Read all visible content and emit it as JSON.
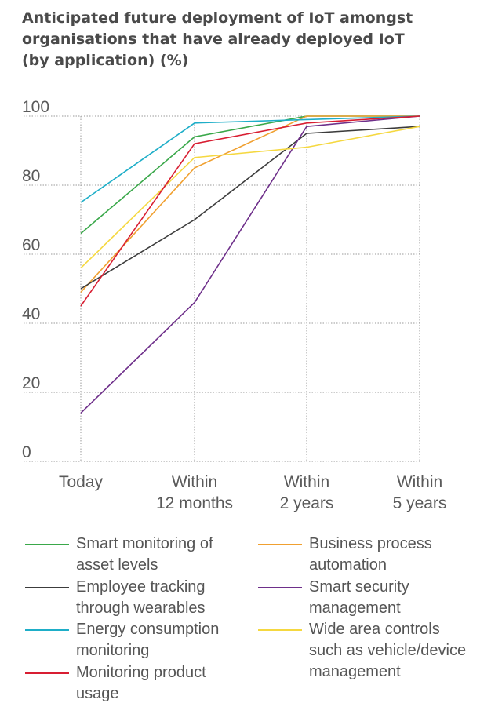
{
  "chart_data": {
    "type": "line",
    "title": "Anticipated future deployment of IoT amongst\norganisations that have already deployed IoT\n(by application) (%)",
    "xlabel": "",
    "ylabel": "",
    "ylim": [
      0,
      100
    ],
    "yticks": [
      "100",
      "80",
      "60",
      "40",
      "20",
      "0"
    ],
    "categories": [
      [
        "Today"
      ],
      [
        "Within",
        "12 months"
      ],
      [
        "Within",
        "2 years"
      ],
      [
        "Within",
        "5 years"
      ]
    ],
    "grid": true,
    "series": [
      {
        "name": "Smart monitoring of asset levels",
        "legend_lines": [
          "Smart monitoring of",
          "asset levels"
        ],
        "color": "#3aa84a",
        "values": [
          66,
          94,
          100,
          100
        ]
      },
      {
        "name": "Business process automation",
        "legend_lines": [
          "Business process",
          "automation"
        ],
        "color": "#f0a030",
        "values": [
          49,
          85,
          100,
          100
        ]
      },
      {
        "name": "Employee tracking through wearables",
        "legend_lines": [
          "Employee tracking",
          "through wearables"
        ],
        "color": "#3c3c3c",
        "values": [
          50,
          70,
          95,
          97
        ]
      },
      {
        "name": "Smart security management",
        "legend_lines": [
          "Smart security",
          "management"
        ],
        "color": "#6e2f8a",
        "values": [
          14,
          46,
          97,
          100
        ]
      },
      {
        "name": "Energy consumption monitoring",
        "legend_lines": [
          "Energy consumption",
          "monitoring"
        ],
        "color": "#1eaec8",
        "values": [
          75,
          98,
          99,
          100
        ]
      },
      {
        "name": "Wide area controls such as vehicle/device management",
        "legend_lines": [
          "Wide area controls",
          "such as vehicle/device",
          "management"
        ],
        "color": "#f5d840",
        "values": [
          56,
          88,
          91,
          97
        ]
      },
      {
        "name": "Monitoring product usage",
        "legend_lines": [
          "Monitoring product",
          "usage"
        ],
        "color": "#d81e32",
        "values": [
          45,
          92,
          98,
          100
        ]
      }
    ]
  }
}
